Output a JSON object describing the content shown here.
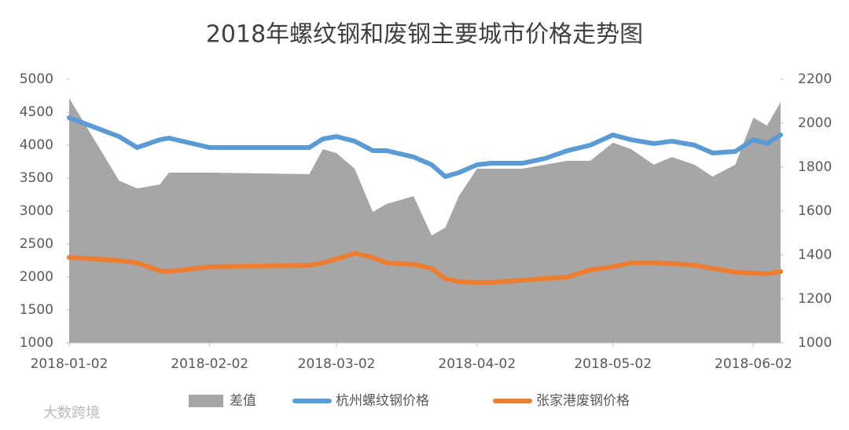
{
  "chart_data": {
    "type": "line",
    "title": "2018年螺纹钢和废钢主要城市价格走势图",
    "x": [
      "2018-01-02",
      "2018-01-13",
      "2018-01-17",
      "2018-01-22",
      "2018-01-24",
      "2018-02-02",
      "2018-02-24",
      "2018-02-27",
      "2018-03-02",
      "2018-03-06",
      "2018-03-10",
      "2018-03-13",
      "2018-03-19",
      "2018-03-23",
      "2018-03-26",
      "2018-03-29",
      "2018-04-02",
      "2018-04-05",
      "2018-04-12",
      "2018-04-17",
      "2018-04-22",
      "2018-04-27",
      "2018-05-02",
      "2018-05-06",
      "2018-05-11",
      "2018-05-15",
      "2018-05-20",
      "2018-05-24",
      "2018-05-29",
      "2018-06-02",
      "2018-06-05",
      "2018-06-08"
    ],
    "xlim": [
      "2018-01-02",
      "2018-06-08"
    ],
    "xticks": [
      "2018-01-02",
      "2018-02-02",
      "2018-03-02",
      "2018-04-02",
      "2018-05-02",
      "2018-06-02"
    ],
    "ylim": [
      1000,
      5000
    ],
    "yticks": [
      1000,
      1500,
      2000,
      2500,
      3000,
      3500,
      4000,
      4500,
      5000
    ],
    "y2lim": [
      1000,
      2200
    ],
    "y2ticks": [
      1000,
      1200,
      1400,
      1600,
      1800,
      2000,
      2200
    ],
    "series": [
      {
        "name": "差值",
        "type": "area",
        "axis": "y2",
        "color": "#a6a6a6",
        "values": [
          2114,
          1739,
          1703,
          1721,
          1775,
          1775,
          1768,
          1882,
          1864,
          1793,
          1596,
          1632,
          1668,
          1489,
          1525,
          1668,
          1793,
          1793,
          1793,
          1811,
          1829,
          1829,
          1911,
          1882,
          1811,
          1846,
          1811,
          1757,
          1811,
          2025,
          1989,
          2096
        ]
      },
      {
        "name": "杭州螺纹钢价格",
        "color": "#5b9bd5",
        "values": [
          4417,
          4131,
          3964,
          4083,
          4107,
          3964,
          3964,
          4095,
          4131,
          4060,
          3917,
          3917,
          3821,
          3702,
          3524,
          3583,
          3702,
          3726,
          3726,
          3798,
          3917,
          4000,
          4155,
          4083,
          4024,
          4060,
          4000,
          3881,
          3905,
          4083,
          4024,
          4155
        ]
      },
      {
        "name": "张家港废钢价格",
        "color": "#ed7d31",
        "values": [
          2298,
          2250,
          2214,
          2095,
          2083,
          2155,
          2179,
          2214,
          2274,
          2357,
          2298,
          2214,
          2190,
          2131,
          1976,
          1929,
          1917,
          1917,
          1952,
          1976,
          2000,
          2107,
          2155,
          2214,
          2214,
          2202,
          2179,
          2131,
          2071,
          2059,
          2048,
          2083
        ]
      }
    ],
    "legend": "bottom",
    "watermark": "大数跨境"
  }
}
